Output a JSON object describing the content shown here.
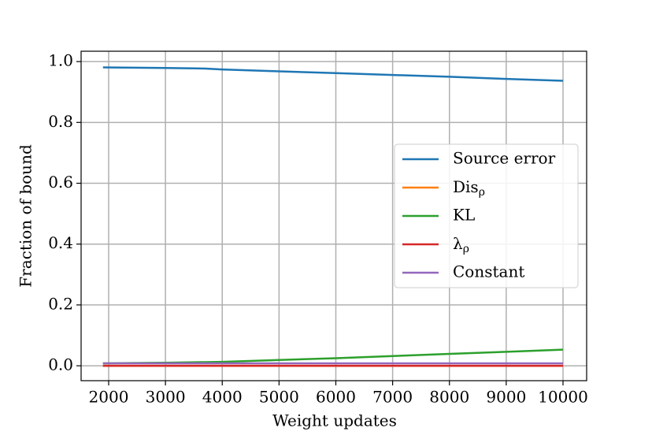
{
  "chart_data": {
    "type": "line",
    "x_label": "Weight updates",
    "y_label": "Fraction of bound",
    "x": [
      1900,
      3000,
      3700,
      4000,
      5000,
      6000,
      7000,
      8000,
      9000,
      10000
    ],
    "series": [
      {
        "name": "Source error",
        "color": "#1f77b4",
        "values": [
          0.981,
          0.979,
          0.977,
          0.974,
          0.968,
          0.962,
          0.956,
          0.95,
          0.943,
          0.937
        ]
      },
      {
        "name": "Dis_ρ",
        "color": "#ff7f0e",
        "values": [
          0.0,
          0.0,
          0.0,
          0.0,
          0.0,
          0.0,
          0.0,
          0.0,
          0.0,
          0.0
        ]
      },
      {
        "name": "KL",
        "color": "#2ca02c",
        "values": [
          0.008,
          0.01,
          0.012,
          0.013,
          0.019,
          0.025,
          0.032,
          0.039,
          0.046,
          0.053
        ]
      },
      {
        "name": "λ_ρ",
        "color": "#d62728",
        "values": [
          0.0,
          0.0,
          0.0,
          0.0,
          0.0,
          0.0,
          0.0,
          0.0,
          0.0,
          0.0
        ]
      },
      {
        "name": "Constant",
        "color": "#9467bd",
        "values": [
          0.008,
          0.008,
          0.008,
          0.008,
          0.008,
          0.008,
          0.008,
          0.008,
          0.008,
          0.008
        ]
      }
    ],
    "xlim": [
      1515,
      10416
    ],
    "ylim": [
      -0.049,
      1.034
    ],
    "xticks": [
      2000,
      3000,
      4000,
      5000,
      6000,
      7000,
      8000,
      9000,
      10000
    ],
    "yticks": [
      {
        "value": 0,
        "label": "0.0"
      },
      {
        "value": 0.2,
        "label": "0.2"
      },
      {
        "value": 0.4,
        "label": "0.4"
      },
      {
        "value": 0.6,
        "label": "0.6"
      },
      {
        "value": 0.8,
        "label": "0.8"
      },
      {
        "value": 1,
        "label": "1.0"
      }
    ],
    "grid": true,
    "legend": "center right"
  }
}
